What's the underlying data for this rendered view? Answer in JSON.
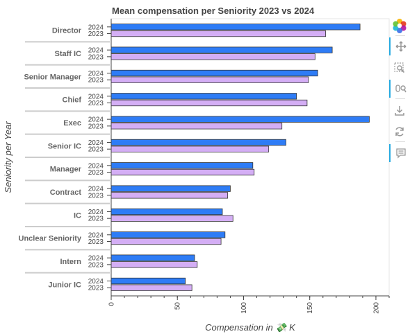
{
  "chart_data": {
    "type": "bar",
    "orientation": "horizontal",
    "title": "Mean compensation per Seniority 2023 vs 2024",
    "xlabel": "Compensation in 💸 K",
    "ylabel": "Seniority per Year",
    "xlim": [
      0,
      210
    ],
    "xticks": [
      0,
      50,
      100,
      150,
      200
    ],
    "grid": false,
    "categories": [
      "Director",
      "Staff IC",
      "Senior Manager",
      "Chief",
      "Exec",
      "Senior IC",
      "Manager",
      "Contract",
      "IC",
      "Unclear Seniority",
      "Intern",
      "Junior IC"
    ],
    "series": [
      {
        "name": "2024",
        "color": "#2e7cf6",
        "values": [
          188,
          167,
          156,
          140,
          195,
          132,
          107,
          90,
          84,
          86,
          63,
          56
        ]
      },
      {
        "name": "2023",
        "color": "#d4aef5",
        "values": [
          162,
          154,
          149,
          148,
          129,
          119,
          108,
          88,
          92,
          83,
          65,
          61
        ]
      }
    ]
  },
  "toolbar": {
    "tools": [
      "bokeh-logo-icon",
      "pan-icon",
      "box-zoom-icon",
      "wheel-zoom-icon",
      "save-icon",
      "reset-icon",
      "hover-icon"
    ]
  }
}
